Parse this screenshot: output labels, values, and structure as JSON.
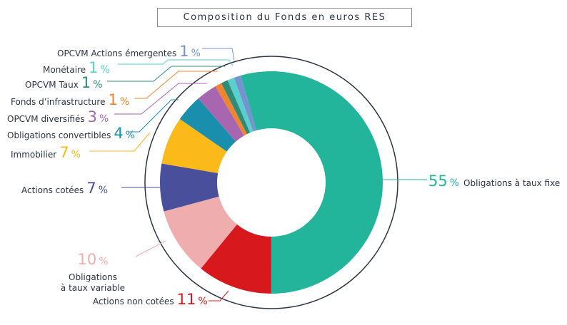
{
  "chart_data": {
    "type": "pie",
    "title": "Composition du Fonds en euros RES",
    "donut": true,
    "unit": "%",
    "slices": [
      {
        "label": "Obligations à taux fixe",
        "value": 55,
        "color": "#22b59c"
      },
      {
        "label": "Actions non cotées",
        "value": 11,
        "color": "#d7191e"
      },
      {
        "label": "Obligations à taux variable",
        "value": 10,
        "color": "#f0adad"
      },
      {
        "label": "Actions cotées",
        "value": 7,
        "color": "#4a4f9c"
      },
      {
        "label": "Immobilier",
        "value": 7,
        "color": "#fbb91a"
      },
      {
        "label": "Obligations convertibles",
        "value": 4,
        "color": "#1a8fad"
      },
      {
        "label": "OPCVM diversifiés",
        "value": 3,
        "color": "#a966b0"
      },
      {
        "label": "Fonds d’infrastructure",
        "value": 1,
        "color": "#ef8431"
      },
      {
        "label": "OPCVM Taux",
        "value": 1,
        "color": "#2e8b75"
      },
      {
        "label": "Monétaire",
        "value": 1,
        "color": "#59cfd0"
      },
      {
        "label": "OPCVM Actions émergentes",
        "value": 1,
        "color": "#7593cf"
      }
    ]
  }
}
